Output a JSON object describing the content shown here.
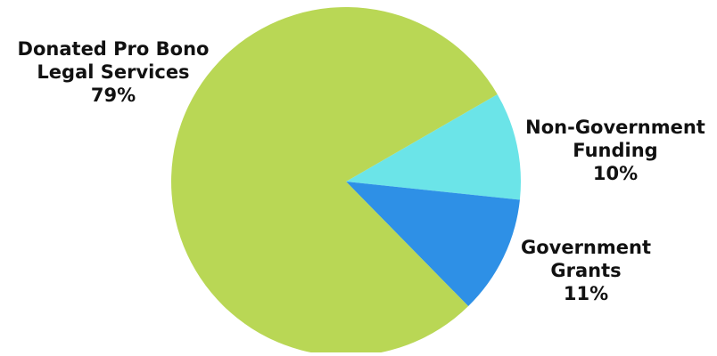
{
  "chart_data": {
    "type": "pie",
    "title": "",
    "legend": "none",
    "slices": [
      {
        "label_lines": [
          "Donated Pro Bono",
          "Legal Services"
        ],
        "value": 79,
        "value_label": "79%",
        "color": "#b9d755"
      },
      {
        "label_lines": [
          "Non-Government",
          "Funding"
        ],
        "value": 10,
        "value_label": "10%",
        "color": "#6be4e8"
      },
      {
        "label_lines": [
          "Government",
          "Grants"
        ],
        "value": 11,
        "value_label": "11%",
        "color": "#2e90e6"
      }
    ]
  }
}
